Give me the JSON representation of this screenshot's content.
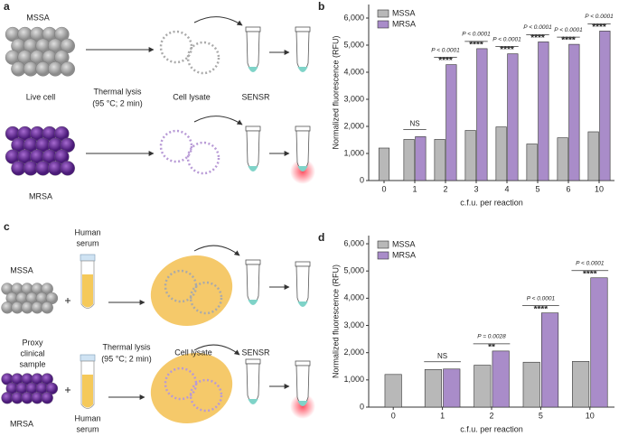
{
  "panel_a": {
    "label": "a",
    "mssa": "MSSA",
    "mrsa": "MRSA",
    "live_cell": "Live cell",
    "thermal_lysis": [
      "Thermal lysis",
      "(95 °C; 2 min)"
    ],
    "cell_lysate": "Cell lysate",
    "sensr": "SENSR"
  },
  "panel_c": {
    "label": "c",
    "mssa": "MSSA",
    "mrsa": "MRSA",
    "human_serum_top": [
      "Human",
      "serum"
    ],
    "human_serum_bottom": [
      "Human",
      "serum"
    ],
    "proxy": [
      "Proxy",
      "clinical",
      "sample"
    ],
    "thermal_lysis": [
      "Thermal lysis",
      "(95 °C; 2 min)"
    ],
    "cell_lysate": "Cell lysate",
    "sensr": "SENSR"
  },
  "chart_data": [
    {
      "type": "bar",
      "panel_label": "b",
      "categories": [
        "0",
        "1",
        "2",
        "3",
        "4",
        "5",
        "6",
        "10"
      ],
      "series": [
        {
          "name": "MSSA",
          "color": "#b8b8b8",
          "values": [
            1200,
            1520,
            1520,
            1850,
            1980,
            1350,
            1580,
            1800
          ]
        },
        {
          "name": "MRSA",
          "color": "#a98cc9",
          "values": [
            null,
            1620,
            4280,
            4870,
            4680,
            5120,
            5030,
            5520
          ]
        }
      ],
      "significance": [
        null,
        "NS",
        "****",
        "****",
        "****",
        "****",
        "****",
        "****"
      ],
      "p_values": [
        null,
        null,
        "P < 0.0001",
        "P < 0.0001",
        "P < 0.0001",
        "P < 0.0001",
        "P < 0.0001",
        "P < 0.0001"
      ],
      "xlabel": "c.f.u. per reaction",
      "ylabel": "Normalized fluorescence (RFU)",
      "ylim": [
        0,
        6500
      ],
      "yticks": [
        0,
        {
          "value": 1000,
          "label": "1,000"
        },
        {
          "value": 2000,
          "label": "2,000"
        },
        {
          "value": 3000,
          "label": "3,000"
        },
        {
          "value": 4000,
          "label": "4,000"
        },
        {
          "value": 5000,
          "label": "5,000"
        },
        {
          "value": 6000,
          "label": "6,000"
        }
      ],
      "legend": "upper-left"
    },
    {
      "type": "bar",
      "panel_label": "d",
      "categories": [
        "0",
        "1",
        "2",
        "5",
        "10"
      ],
      "series": [
        {
          "name": "MSSA",
          "color": "#b8b8b8",
          "values": [
            1200,
            1380,
            1540,
            1650,
            1680
          ]
        },
        {
          "name": "MRSA",
          "color": "#a98cc9",
          "values": [
            null,
            1400,
            2060,
            3460,
            4750
          ]
        }
      ],
      "significance": [
        null,
        "NS",
        "**",
        "****",
        "****"
      ],
      "p_values": [
        null,
        null,
        "P = 0.0028",
        "P < 0.0001",
        "P < 0.0001"
      ],
      "xlabel": "c.f.u. per reaction",
      "ylabel": "Normalized fluorescence (RFU)",
      "ylim": [
        0,
        6300
      ],
      "yticks": [
        0,
        {
          "value": 1000,
          "label": "1,000"
        },
        {
          "value": 2000,
          "label": "2,000"
        },
        {
          "value": 3000,
          "label": "3,000"
        },
        {
          "value": 4000,
          "label": "4,000"
        },
        {
          "value": 5000,
          "label": "5,000"
        },
        {
          "value": 6000,
          "label": "6,000"
        }
      ],
      "legend": "upper-left"
    }
  ]
}
